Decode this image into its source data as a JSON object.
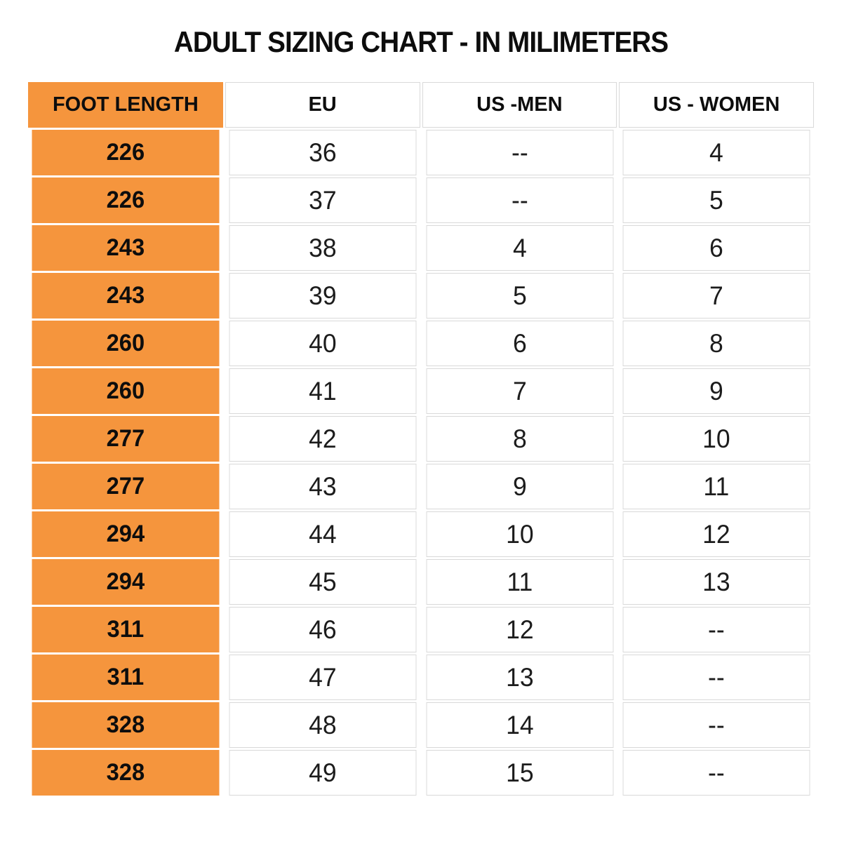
{
  "page": {
    "title": "ADULT SIZING CHART - IN MILIMETERS"
  },
  "colors": {
    "accent_orange": "#F5953D",
    "border_gray": "#D9D9D9",
    "text_black": "#141414"
  },
  "table": {
    "headers": [
      "FOOT LENGTH",
      "EU",
      "US -MEN",
      "US - WOMEN"
    ],
    "rows": [
      [
        "226",
        "36",
        "--",
        "4"
      ],
      [
        "226",
        "37",
        "--",
        "5"
      ],
      [
        "243",
        "38",
        "4",
        "6"
      ],
      [
        "243",
        "39",
        "5",
        "7"
      ],
      [
        "260",
        "40",
        "6",
        "8"
      ],
      [
        "260",
        "41",
        "7",
        "9"
      ],
      [
        "277",
        "42",
        "8",
        "10"
      ],
      [
        "277",
        "43",
        "9",
        "11"
      ],
      [
        "294",
        "44",
        "10",
        "12"
      ],
      [
        "294",
        "45",
        "11",
        "13"
      ],
      [
        "311",
        "46",
        "12",
        "--"
      ],
      [
        "311",
        "47",
        "13",
        "--"
      ],
      [
        "328",
        "48",
        "14",
        "--"
      ],
      [
        "328",
        "49",
        "15",
        "--"
      ]
    ]
  },
  "chart_data": {
    "type": "table",
    "title": "ADULT SIZING CHART - IN MILIMETERS",
    "columns": [
      "FOOT LENGTH",
      "EU",
      "US -MEN",
      "US - WOMEN"
    ],
    "rows": [
      [
        "226",
        "36",
        "--",
        "4"
      ],
      [
        "226",
        "37",
        "--",
        "5"
      ],
      [
        "243",
        "38",
        "4",
        "6"
      ],
      [
        "243",
        "39",
        "5",
        "7"
      ],
      [
        "260",
        "40",
        "6",
        "8"
      ],
      [
        "260",
        "41",
        "7",
        "9"
      ],
      [
        "277",
        "42",
        "8",
        "10"
      ],
      [
        "277",
        "43",
        "9",
        "11"
      ],
      [
        "294",
        "44",
        "10",
        "12"
      ],
      [
        "294",
        "45",
        "11",
        "13"
      ],
      [
        "311",
        "46",
        "12",
        "--"
      ],
      [
        "311",
        "47",
        "13",
        "--"
      ],
      [
        "328",
        "48",
        "14",
        "--"
      ],
      [
        "328",
        "49",
        "15",
        "--"
      ]
    ],
    "layout_hints": {
      "first_column_highlight": "#F5953D",
      "grid": true,
      "units": "millimeters (foot length)"
    }
  }
}
